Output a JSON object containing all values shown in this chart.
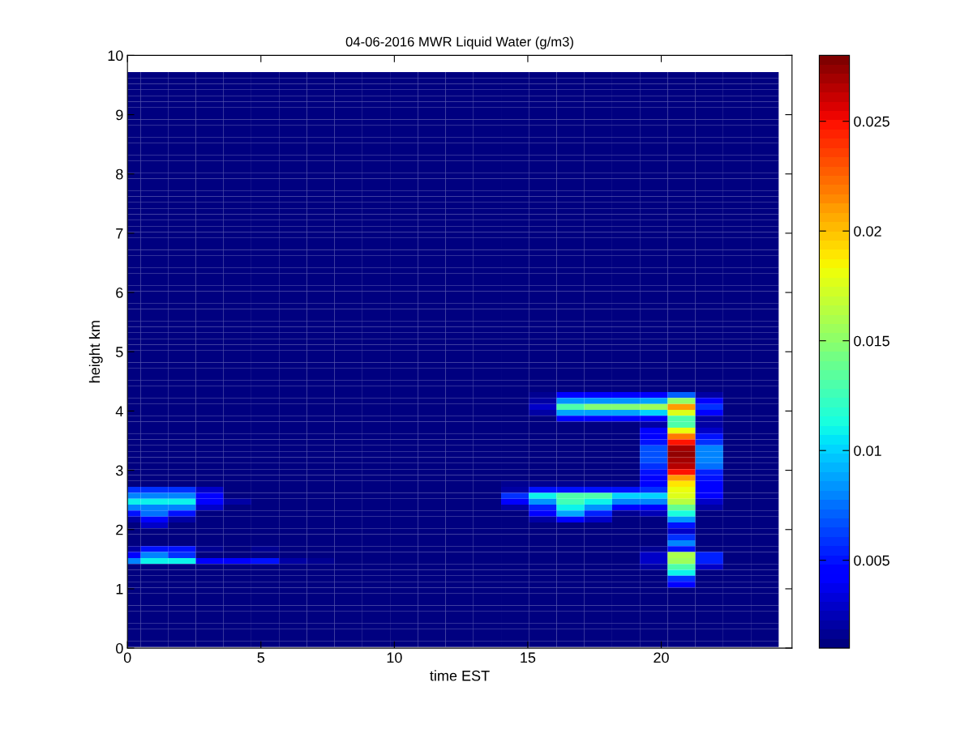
{
  "chart_data": {
    "type": "heatmap",
    "title": "04-06-2016 MWR Liquid Water (g/m3)",
    "xlabel": "time EST",
    "ylabel": "height km",
    "x": [
      0,
      1,
      2.04,
      3.08,
      4.12,
      5.16,
      6.2,
      7.24,
      8.28,
      9.32,
      10.36,
      11.4,
      12.44,
      13.48,
      14.52,
      15.56,
      16.6,
      17.64,
      18.68,
      19.72,
      20.76,
      21.8,
      22.84,
      23.88
    ],
    "y": [
      9.67,
      9.57,
      9.47,
      9.37,
      9.27,
      9.17,
      9.07,
      8.97,
      8.87,
      8.77,
      8.67,
      8.57,
      8.47,
      8.37,
      8.27,
      8.17,
      8.07,
      7.97,
      7.87,
      7.77,
      7.67,
      7.57,
      7.47,
      7.37,
      7.27,
      7.17,
      7.07,
      6.97,
      6.87,
      6.77,
      6.67,
      6.57,
      6.47,
      6.37,
      6.27,
      6.17,
      6.07,
      5.97,
      5.87,
      5.77,
      5.67,
      5.57,
      5.47,
      5.37,
      5.27,
      5.17,
      5.07,
      4.97,
      4.87,
      4.77,
      4.67,
      4.57,
      4.47,
      4.37,
      4.27,
      4.17,
      4.07,
      3.97,
      3.87,
      3.77,
      3.67,
      3.57,
      3.47,
      3.37,
      3.27,
      3.17,
      3.07,
      2.97,
      2.87,
      2.77,
      2.67,
      2.57,
      2.47,
      2.37,
      2.27,
      2.17,
      2.07,
      1.97,
      1.87,
      1.77,
      1.67,
      1.57,
      1.47,
      1.37,
      1.27,
      1.17,
      1.07,
      0.97,
      0.87,
      0.77,
      0.67,
      0.57,
      0.47,
      0.37,
      0.27,
      0.17,
      0.07
    ],
    "cells": [
      [
        0.001,
        0.001,
        0.001,
        0.001,
        0.001,
        0.001,
        0.001,
        0.001,
        0.001,
        0.001,
        0.001,
        0.001,
        0.001,
        0.001,
        0.001,
        0.001,
        0.001,
        0.001,
        0.001,
        0.001,
        0.001,
        0.001,
        0.001,
        0.001
      ],
      [
        0.001,
        0.001,
        0.001,
        0.001,
        0.001,
        0.001,
        0.001,
        0.001,
        0.001,
        0.001,
        0.001,
        0.001,
        0.001,
        0.001,
        0.001,
        0.001,
        0.001,
        0.001,
        0.001,
        0.001,
        0.001,
        0.001,
        0.001,
        0.001
      ],
      [
        0.001,
        0.001,
        0.001,
        0.001,
        0.001,
        0.001,
        0.001,
        0.001,
        0.001,
        0.001,
        0.001,
        0.001,
        0.001,
        0.001,
        0.001,
        0.001,
        0.001,
        0.001,
        0.001,
        0.001,
        0.001,
        0.001,
        0.001,
        0.001
      ],
      [
        0.001,
        0.001,
        0.001,
        0.001,
        0.001,
        0.001,
        0.001,
        0.001,
        0.001,
        0.001,
        0.001,
        0.001,
        0.001,
        0.001,
        0.001,
        0.001,
        0.001,
        0.001,
        0.001,
        0.001,
        0.001,
        0.001,
        0.001,
        0.001
      ],
      [
        0.001,
        0.001,
        0.001,
        0.001,
        0.001,
        0.001,
        0.001,
        0.001,
        0.001,
        0.001,
        0.001,
        0.001,
        0.001,
        0.001,
        0.001,
        0.001,
        0.001,
        0.001,
        0.001,
        0.001,
        0.001,
        0.001,
        0.001,
        0.001
      ],
      [
        0.001,
        0.001,
        0.001,
        0.001,
        0.001,
        0.001,
        0.001,
        0.001,
        0.001,
        0.001,
        0.001,
        0.001,
        0.001,
        0.001,
        0.001,
        0.001,
        0.001,
        0.001,
        0.001,
        0.001,
        0.001,
        0.001,
        0.001,
        0.001
      ],
      [
        0.001,
        0.001,
        0.001,
        0.001,
        0.001,
        0.001,
        0.001,
        0.001,
        0.001,
        0.001,
        0.001,
        0.001,
        0.001,
        0.001,
        0.001,
        0.001,
        0.001,
        0.001,
        0.001,
        0.001,
        0.001,
        0.001,
        0.001,
        0.001
      ],
      [
        0.001,
        0.001,
        0.001,
        0.001,
        0.001,
        0.001,
        0.001,
        0.001,
        0.001,
        0.001,
        0.001,
        0.001,
        0.001,
        0.001,
        0.001,
        0.001,
        0.001,
        0.001,
        0.001,
        0.001,
        0.001,
        0.001,
        0.001,
        0.001
      ],
      [
        0.001,
        0.001,
        0.001,
        0.001,
        0.001,
        0.001,
        0.001,
        0.001,
        0.001,
        0.001,
        0.001,
        0.001,
        0.001,
        0.001,
        0.001,
        0.001,
        0.001,
        0.001,
        0.001,
        0.001,
        0.001,
        0.001,
        0.001,
        0.001
      ],
      [
        0.001,
        0.001,
        0.001,
        0.001,
        0.001,
        0.001,
        0.001,
        0.001,
        0.001,
        0.001,
        0.001,
        0.001,
        0.001,
        0.001,
        0.001,
        0.001,
        0.001,
        0.001,
        0.001,
        0.001,
        0.001,
        0.001,
        0.001,
        0.001
      ],
      [
        0.001,
        0.001,
        0.001,
        0.001,
        0.001,
        0.001,
        0.001,
        0.001,
        0.001,
        0.001,
        0.001,
        0.001,
        0.001,
        0.001,
        0.001,
        0.001,
        0.001,
        0.001,
        0.001,
        0.001,
        0.001,
        0.001,
        0.001,
        0.001
      ],
      [
        0.001,
        0.001,
        0.001,
        0.001,
        0.001,
        0.001,
        0.001,
        0.001,
        0.001,
        0.001,
        0.001,
        0.001,
        0.001,
        0.001,
        0.001,
        0.001,
        0.001,
        0.001,
        0.001,
        0.001,
        0.001,
        0.001,
        0.001,
        0.001
      ],
      [
        0.001,
        0.001,
        0.001,
        0.001,
        0.001,
        0.001,
        0.001,
        0.001,
        0.001,
        0.001,
        0.001,
        0.001,
        0.001,
        0.001,
        0.001,
        0.001,
        0.001,
        0.001,
        0.001,
        0.001,
        0.001,
        0.001,
        0.001,
        0.001
      ],
      [
        0.001,
        0.001,
        0.001,
        0.001,
        0.001,
        0.001,
        0.001,
        0.001,
        0.001,
        0.001,
        0.001,
        0.001,
        0.001,
        0.001,
        0.001,
        0.001,
        0.001,
        0.001,
        0.001,
        0.001,
        0.001,
        0.001,
        0.001,
        0.001
      ],
      [
        0.001,
        0.001,
        0.001,
        0.001,
        0.001,
        0.001,
        0.001,
        0.001,
        0.001,
        0.001,
        0.001,
        0.001,
        0.001,
        0.001,
        0.001,
        0.001,
        0.001,
        0.001,
        0.001,
        0.001,
        0.001,
        0.001,
        0.001,
        0.001
      ],
      [
        0.001,
        0.001,
        0.001,
        0.001,
        0.001,
        0.001,
        0.001,
        0.001,
        0.001,
        0.001,
        0.001,
        0.001,
        0.001,
        0.001,
        0.001,
        0.001,
        0.001,
        0.001,
        0.001,
        0.001,
        0.001,
        0.001,
        0.001,
        0.001
      ],
      [
        0.001,
        0.001,
        0.001,
        0.001,
        0.001,
        0.001,
        0.001,
        0.001,
        0.001,
        0.001,
        0.001,
        0.001,
        0.001,
        0.001,
        0.001,
        0.001,
        0.001,
        0.001,
        0.001,
        0.001,
        0.001,
        0.001,
        0.001,
        0.001
      ],
      [
        0.001,
        0.001,
        0.001,
        0.001,
        0.001,
        0.001,
        0.001,
        0.001,
        0.001,
        0.001,
        0.001,
        0.001,
        0.001,
        0.001,
        0.001,
        0.001,
        0.001,
        0.001,
        0.001,
        0.001,
        0.001,
        0.001,
        0.001,
        0.001
      ],
      [
        0.001,
        0.001,
        0.001,
        0.001,
        0.001,
        0.001,
        0.001,
        0.001,
        0.001,
        0.001,
        0.001,
        0.001,
        0.001,
        0.001,
        0.001,
        0.001,
        0.001,
        0.001,
        0.001,
        0.001,
        0.001,
        0.001,
        0.001,
        0.001
      ],
      [
        0.001,
        0.001,
        0.001,
        0.001,
        0.001,
        0.001,
        0.001,
        0.001,
        0.001,
        0.001,
        0.001,
        0.001,
        0.001,
        0.001,
        0.001,
        0.001,
        0.001,
        0.001,
        0.001,
        0.001,
        0.001,
        0.001,
        0.001,
        0.001
      ],
      [
        0.001,
        0.001,
        0.001,
        0.001,
        0.001,
        0.001,
        0.001,
        0.001,
        0.001,
        0.001,
        0.001,
        0.001,
        0.001,
        0.001,
        0.001,
        0.001,
        0.001,
        0.001,
        0.001,
        0.001,
        0.001,
        0.001,
        0.001,
        0.001
      ],
      [
        0.001,
        0.001,
        0.001,
        0.001,
        0.001,
        0.001,
        0.001,
        0.001,
        0.001,
        0.001,
        0.001,
        0.001,
        0.001,
        0.001,
        0.001,
        0.001,
        0.001,
        0.001,
        0.001,
        0.001,
        0.001,
        0.001,
        0.001,
        0.001
      ],
      [
        0.001,
        0.001,
        0.001,
        0.001,
        0.001,
        0.001,
        0.001,
        0.001,
        0.001,
        0.001,
        0.001,
        0.001,
        0.001,
        0.001,
        0.001,
        0.001,
        0.001,
        0.001,
        0.001,
        0.001,
        0.001,
        0.001,
        0.001,
        0.001
      ],
      [
        0.001,
        0.001,
        0.001,
        0.001,
        0.001,
        0.001,
        0.001,
        0.001,
        0.001,
        0.001,
        0.001,
        0.001,
        0.001,
        0.001,
        0.001,
        0.001,
        0.001,
        0.001,
        0.001,
        0.001,
        0.001,
        0.001,
        0.001,
        0.001
      ],
      [
        0.001,
        0.001,
        0.001,
        0.001,
        0.001,
        0.001,
        0.001,
        0.001,
        0.001,
        0.001,
        0.001,
        0.001,
        0.001,
        0.001,
        0.001,
        0.001,
        0.001,
        0.001,
        0.001,
        0.001,
        0.001,
        0.001,
        0.001,
        0.001
      ],
      [
        0.001,
        0.001,
        0.001,
        0.001,
        0.001,
        0.001,
        0.001,
        0.001,
        0.001,
        0.001,
        0.001,
        0.001,
        0.001,
        0.001,
        0.001,
        0.001,
        0.001,
        0.001,
        0.001,
        0.001,
        0.001,
        0.001,
        0.001,
        0.001
      ],
      [
        0.001,
        0.001,
        0.001,
        0.001,
        0.001,
        0.001,
        0.001,
        0.001,
        0.001,
        0.001,
        0.001,
        0.001,
        0.001,
        0.001,
        0.001,
        0.001,
        0.001,
        0.001,
        0.001,
        0.001,
        0.001,
        0.001,
        0.001,
        0.001
      ],
      [
        0.001,
        0.001,
        0.001,
        0.001,
        0.001,
        0.001,
        0.001,
        0.001,
        0.001,
        0.001,
        0.001,
        0.001,
        0.001,
        0.001,
        0.001,
        0.001,
        0.001,
        0.001,
        0.001,
        0.001,
        0.001,
        0.001,
        0.001,
        0.001
      ],
      [
        0.001,
        0.001,
        0.001,
        0.001,
        0.001,
        0.001,
        0.001,
        0.001,
        0.001,
        0.001,
        0.001,
        0.001,
        0.001,
        0.001,
        0.001,
        0.001,
        0.001,
        0.001,
        0.001,
        0.001,
        0.001,
        0.001,
        0.001,
        0.001
      ],
      [
        0.001,
        0.001,
        0.001,
        0.001,
        0.001,
        0.001,
        0.001,
        0.001,
        0.001,
        0.001,
        0.001,
        0.001,
        0.001,
        0.001,
        0.001,
        0.001,
        0.001,
        0.001,
        0.001,
        0.001,
        0.001,
        0.001,
        0.001,
        0.001
      ],
      [
        0.001,
        0.001,
        0.001,
        0.001,
        0.001,
        0.001,
        0.001,
        0.001,
        0.001,
        0.001,
        0.001,
        0.001,
        0.001,
        0.001,
        0.001,
        0.001,
        0.001,
        0.001,
        0.001,
        0.001,
        0.001,
        0.001,
        0.001,
        0.001
      ],
      [
        0.001,
        0.001,
        0.001,
        0.001,
        0.001,
        0.001,
        0.001,
        0.001,
        0.001,
        0.001,
        0.001,
        0.001,
        0.001,
        0.001,
        0.001,
        0.001,
        0.001,
        0.001,
        0.001,
        0.001,
        0.001,
        0.001,
        0.001,
        0.001
      ],
      [
        0.001,
        0.001,
        0.001,
        0.001,
        0.001,
        0.001,
        0.001,
        0.001,
        0.001,
        0.001,
        0.001,
        0.001,
        0.001,
        0.001,
        0.001,
        0.001,
        0.001,
        0.001,
        0.001,
        0.001,
        0.001,
        0.001,
        0.001,
        0.001
      ],
      [
        0.001,
        0.001,
        0.001,
        0.001,
        0.001,
        0.001,
        0.001,
        0.001,
        0.001,
        0.001,
        0.001,
        0.001,
        0.001,
        0.001,
        0.001,
        0.001,
        0.001,
        0.001,
        0.001,
        0.001,
        0.001,
        0.001,
        0.001,
        0.001
      ],
      [
        0.001,
        0.001,
        0.001,
        0.001,
        0.001,
        0.001,
        0.001,
        0.001,
        0.001,
        0.001,
        0.001,
        0.001,
        0.001,
        0.001,
        0.001,
        0.001,
        0.001,
        0.001,
        0.001,
        0.001,
        0.001,
        0.001,
        0.001,
        0.001
      ],
      [
        0.001,
        0.001,
        0.001,
        0.001,
        0.001,
        0.001,
        0.001,
        0.001,
        0.001,
        0.001,
        0.001,
        0.001,
        0.001,
        0.001,
        0.001,
        0.001,
        0.001,
        0.001,
        0.001,
        0.001,
        0.001,
        0.001,
        0.001,
        0.001
      ],
      [
        0.001,
        0.001,
        0.001,
        0.001,
        0.001,
        0.001,
        0.001,
        0.001,
        0.001,
        0.001,
        0.001,
        0.001,
        0.001,
        0.001,
        0.001,
        0.001,
        0.001,
        0.001,
        0.001,
        0.001,
        0.001,
        0.001,
        0.001,
        0.001
      ],
      [
        0.001,
        0.001,
        0.001,
        0.001,
        0.001,
        0.001,
        0.001,
        0.001,
        0.001,
        0.001,
        0.001,
        0.001,
        0.001,
        0.001,
        0.001,
        0.001,
        0.001,
        0.001,
        0.001,
        0.001,
        0.001,
        0.001,
        0.001,
        0.001
      ],
      [
        0.001,
        0.001,
        0.001,
        0.001,
        0.001,
        0.001,
        0.001,
        0.001,
        0.001,
        0.001,
        0.001,
        0.001,
        0.001,
        0.001,
        0.001,
        0.001,
        0.001,
        0.001,
        0.001,
        0.001,
        0.001,
        0.001,
        0.001,
        0.001
      ],
      [
        0.001,
        0.001,
        0.001,
        0.001,
        0.001,
        0.001,
        0.001,
        0.001,
        0.001,
        0.001,
        0.001,
        0.001,
        0.001,
        0.001,
        0.001,
        0.001,
        0.001,
        0.001,
        0.001,
        0.001,
        0.001,
        0.001,
        0.001,
        0.001
      ],
      [
        0.001,
        0.001,
        0.001,
        0.001,
        0.001,
        0.001,
        0.001,
        0.001,
        0.001,
        0.001,
        0.001,
        0.001,
        0.001,
        0.001,
        0.001,
        0.001,
        0.001,
        0.001,
        0.001,
        0.001,
        0.001,
        0.001,
        0.001,
        0.001
      ],
      [
        0.001,
        0.001,
        0.001,
        0.001,
        0.001,
        0.001,
        0.001,
        0.001,
        0.001,
        0.001,
        0.001,
        0.001,
        0.001,
        0.001,
        0.001,
        0.001,
        0.001,
        0.001,
        0.001,
        0.001,
        0.001,
        0.001,
        0.001,
        0.001
      ],
      [
        0.001,
        0.001,
        0.001,
        0.001,
        0.001,
        0.001,
        0.001,
        0.001,
        0.001,
        0.001,
        0.001,
        0.001,
        0.001,
        0.001,
        0.001,
        0.001,
        0.001,
        0.001,
        0.001,
        0.001,
        0.001,
        0.001,
        0.001,
        0.001
      ],
      [
        0.001,
        0.001,
        0.001,
        0.001,
        0.001,
        0.001,
        0.001,
        0.001,
        0.001,
        0.001,
        0.001,
        0.001,
        0.001,
        0.001,
        0.001,
        0.001,
        0.001,
        0.001,
        0.001,
        0.001,
        0.001,
        0.001,
        0.001,
        0.001
      ],
      [
        0.001,
        0.001,
        0.001,
        0.001,
        0.001,
        0.001,
        0.001,
        0.001,
        0.001,
        0.001,
        0.001,
        0.001,
        0.001,
        0.001,
        0.001,
        0.001,
        0.001,
        0.001,
        0.001,
        0.001,
        0.001,
        0.001,
        0.001,
        0.001
      ],
      [
        0.001,
        0.001,
        0.001,
        0.001,
        0.001,
        0.001,
        0.001,
        0.001,
        0.001,
        0.001,
        0.001,
        0.001,
        0.001,
        0.001,
        0.001,
        0.001,
        0.001,
        0.001,
        0.001,
        0.001,
        0.001,
        0.001,
        0.001,
        0.001
      ],
      [
        0.001,
        0.001,
        0.001,
        0.001,
        0.001,
        0.001,
        0.001,
        0.001,
        0.001,
        0.001,
        0.001,
        0.001,
        0.001,
        0.001,
        0.001,
        0.001,
        0.001,
        0.001,
        0.001,
        0.001,
        0.001,
        0.001,
        0.001,
        0.001
      ],
      [
        0.001,
        0.001,
        0.001,
        0.001,
        0.001,
        0.001,
        0.001,
        0.001,
        0.001,
        0.001,
        0.001,
        0.001,
        0.001,
        0.001,
        0.001,
        0.001,
        0.001,
        0.001,
        0.001,
        0.001,
        0.001,
        0.001,
        0.001,
        0.001
      ],
      [
        0.001,
        0.001,
        0.001,
        0.001,
        0.001,
        0.001,
        0.001,
        0.001,
        0.001,
        0.001,
        0.001,
        0.001,
        0.001,
        0.001,
        0.001,
        0.001,
        0.001,
        0.001,
        0.001,
        0.001,
        0.001,
        0.001,
        0.001,
        0.001
      ],
      [
        0.001,
        0.001,
        0.001,
        0.001,
        0.001,
        0.001,
        0.001,
        0.001,
        0.001,
        0.001,
        0.001,
        0.001,
        0.001,
        0.001,
        0.001,
        0.001,
        0.001,
        0.001,
        0.001,
        0.001,
        0.001,
        0.001,
        0.001,
        0.001
      ],
      [
        0.001,
        0.001,
        0.001,
        0.001,
        0.001,
        0.001,
        0.001,
        0.001,
        0.001,
        0.001,
        0.001,
        0.001,
        0.001,
        0.001,
        0.001,
        0.001,
        0.001,
        0.001,
        0.001,
        0.001,
        0.001,
        0.001,
        0.001,
        0.001
      ],
      [
        0.001,
        0.001,
        0.001,
        0.001,
        0.001,
        0.001,
        0.001,
        0.001,
        0.001,
        0.001,
        0.001,
        0.001,
        0.001,
        0.001,
        0.001,
        0.001,
        0.001,
        0.001,
        0.001,
        0.001,
        0.001,
        0.001,
        0.001,
        0.001
      ],
      [
        0.001,
        0.001,
        0.001,
        0.001,
        0.001,
        0.001,
        0.001,
        0.001,
        0.001,
        0.001,
        0.001,
        0.001,
        0.001,
        0.001,
        0.001,
        0.001,
        0.001,
        0.001,
        0.001,
        0.001,
        0.001,
        0.001,
        0.001,
        0.001
      ],
      [
        0.001,
        0.001,
        0.001,
        0.001,
        0.001,
        0.001,
        0.001,
        0.001,
        0.001,
        0.001,
        0.001,
        0.001,
        0.001,
        0.001,
        0.001,
        0.001,
        0.001,
        0.001,
        0.001,
        0.001,
        0.001,
        0.001,
        0.001,
        0.001
      ],
      [
        0.001,
        0.001,
        0.001,
        0.001,
        0.001,
        0.001,
        0.001,
        0.001,
        0.001,
        0.001,
        0.001,
        0.001,
        0.001,
        0.001,
        0.001,
        0.0015,
        0.004,
        0.004,
        0.004,
        0.004,
        0.007,
        0.002,
        0.001,
        0.001
      ],
      [
        0.001,
        0.001,
        0.001,
        0.001,
        0.001,
        0.001,
        0.001,
        0.001,
        0.001,
        0.001,
        0.001,
        0.001,
        0.001,
        0.001,
        0.001,
        0.002,
        0.0085,
        0.0085,
        0.0085,
        0.009,
        0.015,
        0.004,
        0.001,
        0.001
      ],
      [
        0.001,
        0.001,
        0.001,
        0.001,
        0.001,
        0.001,
        0.001,
        0.001,
        0.001,
        0.001,
        0.001,
        0.001,
        0.001,
        0.001,
        0.001,
        0.003,
        0.013,
        0.0145,
        0.0145,
        0.0155,
        0.021,
        0.006,
        0.001,
        0.001
      ],
      [
        0.001,
        0.001,
        0.001,
        0.001,
        0.001,
        0.001,
        0.001,
        0.001,
        0.001,
        0.001,
        0.001,
        0.001,
        0.001,
        0.001,
        0.001,
        0.002,
        0.009,
        0.009,
        0.009,
        0.01,
        0.0175,
        0.0045,
        0.001,
        0.001
      ],
      [
        0.001,
        0.001,
        0.001,
        0.001,
        0.001,
        0.001,
        0.001,
        0.001,
        0.001,
        0.001,
        0.001,
        0.001,
        0.001,
        0.001,
        0.001,
        0.001,
        0.004,
        0.004,
        0.004,
        0.004,
        0.013,
        0.002,
        0.001,
        0.001
      ],
      [
        0.001,
        0.001,
        0.001,
        0.001,
        0.001,
        0.001,
        0.001,
        0.001,
        0.001,
        0.001,
        0.001,
        0.001,
        0.001,
        0.001,
        0.001,
        0.001,
        0.001,
        0.001,
        0.001,
        0.002,
        0.013,
        0.002,
        0.001,
        0.001
      ],
      [
        0.001,
        0.001,
        0.001,
        0.001,
        0.001,
        0.001,
        0.001,
        0.001,
        0.001,
        0.001,
        0.001,
        0.001,
        0.001,
        0.001,
        0.001,
        0.001,
        0.001,
        0.001,
        0.001,
        0.004,
        0.018,
        0.003,
        0.001,
        0.001
      ],
      [
        0.001,
        0.001,
        0.001,
        0.001,
        0.001,
        0.001,
        0.001,
        0.001,
        0.001,
        0.001,
        0.001,
        0.001,
        0.001,
        0.001,
        0.001,
        0.001,
        0.001,
        0.001,
        0.001,
        0.0045,
        0.022,
        0.005,
        0.001,
        0.001
      ],
      [
        0.001,
        0.001,
        0.001,
        0.001,
        0.001,
        0.001,
        0.001,
        0.001,
        0.001,
        0.001,
        0.001,
        0.001,
        0.001,
        0.001,
        0.001,
        0.001,
        0.001,
        0.001,
        0.001,
        0.005,
        0.025,
        0.006,
        0.001,
        0.001
      ],
      [
        0.001,
        0.001,
        0.001,
        0.001,
        0.001,
        0.001,
        0.001,
        0.001,
        0.001,
        0.001,
        0.001,
        0.001,
        0.001,
        0.001,
        0.001,
        0.001,
        0.001,
        0.001,
        0.001,
        0.0065,
        0.027,
        0.008,
        0.001,
        0.001
      ],
      [
        0.001,
        0.001,
        0.001,
        0.001,
        0.001,
        0.001,
        0.001,
        0.001,
        0.001,
        0.001,
        0.001,
        0.001,
        0.001,
        0.001,
        0.001,
        0.001,
        0.001,
        0.001,
        0.001,
        0.0065,
        0.0275,
        0.008,
        0.001,
        0.001
      ],
      [
        0.001,
        0.001,
        0.001,
        0.001,
        0.001,
        0.001,
        0.001,
        0.001,
        0.001,
        0.001,
        0.001,
        0.001,
        0.001,
        0.001,
        0.001,
        0.001,
        0.001,
        0.001,
        0.001,
        0.0065,
        0.027,
        0.008,
        0.001,
        0.001
      ],
      [
        0.001,
        0.001,
        0.001,
        0.001,
        0.001,
        0.001,
        0.001,
        0.001,
        0.001,
        0.001,
        0.001,
        0.001,
        0.001,
        0.001,
        0.001,
        0.001,
        0.001,
        0.001,
        0.001,
        0.006,
        0.0265,
        0.0075,
        0.001,
        0.001
      ],
      [
        0.001,
        0.001,
        0.001,
        0.001,
        0.001,
        0.001,
        0.001,
        0.001,
        0.001,
        0.001,
        0.001,
        0.001,
        0.001,
        0.001,
        0.001,
        0.001,
        0.001,
        0.001,
        0.001,
        0.005,
        0.025,
        0.0055,
        0.001,
        0.001
      ],
      [
        0.001,
        0.001,
        0.001,
        0.001,
        0.001,
        0.001,
        0.001,
        0.001,
        0.001,
        0.001,
        0.001,
        0.001,
        0.001,
        0.001,
        0.001,
        0.001,
        0.001,
        0.001,
        0.001,
        0.004,
        0.021,
        0.005,
        0.001,
        0.001
      ],
      [
        0.001,
        0.001,
        0.001,
        0.001,
        0.001,
        0.001,
        0.001,
        0.001,
        0.001,
        0.001,
        0.001,
        0.001,
        0.001,
        0.001,
        0.0015,
        0.0015,
        0.0015,
        0.0015,
        0.0015,
        0.004,
        0.019,
        0.0045,
        0.001,
        0.001
      ],
      [
        0.006,
        0.006,
        0.006,
        0.003,
        0.001,
        0.001,
        0.001,
        0.001,
        0.001,
        0.001,
        0.001,
        0.001,
        0.001,
        0.001,
        0.002,
        0.005,
        0.005,
        0.005,
        0.005,
        0.006,
        0.018,
        0.0045,
        0.001,
        0.001
      ],
      [
        0.008,
        0.008,
        0.008,
        0.004,
        0.001,
        0.001,
        0.001,
        0.001,
        0.001,
        0.001,
        0.001,
        0.001,
        0.001,
        0.001,
        0.006,
        0.011,
        0.013,
        0.013,
        0.01,
        0.01,
        0.0178,
        0.0045,
        0.001,
        0.001
      ],
      [
        0.011,
        0.011,
        0.011,
        0.0045,
        0.002,
        0.001,
        0.001,
        0.001,
        0.001,
        0.001,
        0.001,
        0.001,
        0.001,
        0.001,
        0.0045,
        0.0085,
        0.0125,
        0.011,
        0.008,
        0.008,
        0.0165,
        0.003,
        0.001,
        0.001
      ],
      [
        0.008,
        0.008,
        0.008,
        0.003,
        0.001,
        0.001,
        0.001,
        0.001,
        0.001,
        0.001,
        0.001,
        0.001,
        0.001,
        0.001,
        0.002,
        0.0055,
        0.011,
        0.0085,
        0.004,
        0.004,
        0.014,
        0.002,
        0.001,
        0.001
      ],
      [
        0.005,
        0.0075,
        0.005,
        0.001,
        0.001,
        0.001,
        0.001,
        0.001,
        0.001,
        0.001,
        0.001,
        0.001,
        0.001,
        0.001,
        0.001,
        0.004,
        0.009,
        0.0055,
        0.0015,
        0.0025,
        0.0115,
        0.001,
        0.001,
        0.001
      ],
      [
        0.002,
        0.0045,
        0.002,
        0.001,
        0.001,
        0.001,
        0.001,
        0.001,
        0.001,
        0.001,
        0.001,
        0.001,
        0.001,
        0.001,
        0.001,
        0.002,
        0.0045,
        0.003,
        0.001,
        0.001,
        0.0085,
        0.001,
        0.001,
        0.001
      ],
      [
        0.001,
        0.003,
        0.001,
        0.001,
        0.001,
        0.001,
        0.001,
        0.001,
        0.001,
        0.001,
        0.001,
        0.001,
        0.001,
        0.001,
        0.001,
        0.001,
        0.001,
        0.001,
        0.001,
        0.001,
        0.005,
        0.001,
        0.001,
        0.001
      ],
      [
        0.001,
        0.001,
        0.001,
        0.001,
        0.001,
        0.001,
        0.001,
        0.001,
        0.001,
        0.001,
        0.001,
        0.001,
        0.001,
        0.001,
        0.001,
        0.001,
        0.001,
        0.001,
        0.001,
        0.001,
        0.003,
        0.001,
        0.001,
        0.001
      ],
      [
        0.001,
        0.001,
        0.001,
        0.001,
        0.001,
        0.001,
        0.001,
        0.001,
        0.001,
        0.001,
        0.001,
        0.001,
        0.001,
        0.001,
        0.001,
        0.001,
        0.001,
        0.001,
        0.001,
        0.001,
        0.006,
        0.001,
        0.001,
        0.001
      ],
      [
        0.001,
        0.001,
        0.001,
        0.001,
        0.001,
        0.001,
        0.001,
        0.001,
        0.001,
        0.001,
        0.001,
        0.001,
        0.001,
        0.001,
        0.001,
        0.001,
        0.001,
        0.001,
        0.001,
        0.001,
        0.008,
        0.001,
        0.001,
        0.001
      ],
      [
        0.002,
        0.005,
        0.005,
        0.0015,
        0.001,
        0.0015,
        0.001,
        0.001,
        0.001,
        0.001,
        0.001,
        0.001,
        0.001,
        0.001,
        0.001,
        0.001,
        0.001,
        0.001,
        0.001,
        0.0015,
        0.005,
        0.001,
        0.001,
        0.001
      ],
      [
        0.004,
        0.008,
        0.006,
        0.001,
        0.001,
        0.001,
        0.001,
        0.001,
        0.001,
        0.001,
        0.001,
        0.001,
        0.001,
        0.001,
        0.001,
        0.001,
        0.001,
        0.001,
        0.001,
        0.003,
        0.016,
        0.0055,
        0.001,
        0.001
      ],
      [
        0.008,
        0.011,
        0.011,
        0.0045,
        0.0045,
        0.005,
        0.002,
        0.0018,
        0.001,
        0.001,
        0.001,
        0.001,
        0.001,
        0.001,
        0.001,
        0.001,
        0.001,
        0.001,
        0.001,
        0.003,
        0.0155,
        0.0055,
        0.001,
        0.001
      ],
      [
        0.001,
        0.001,
        0.001,
        0.001,
        0.001,
        0.001,
        0.001,
        0.001,
        0.001,
        0.001,
        0.001,
        0.001,
        0.001,
        0.001,
        0.001,
        0.001,
        0.001,
        0.001,
        0.001,
        0.002,
        0.013,
        0.003,
        0.001,
        0.001
      ],
      [
        0.001,
        0.001,
        0.001,
        0.001,
        0.001,
        0.001,
        0.001,
        0.001,
        0.001,
        0.001,
        0.001,
        0.001,
        0.001,
        0.001,
        0.001,
        0.001,
        0.001,
        0.001,
        0.001,
        0.001,
        0.011,
        0.001,
        0.001,
        0.001
      ],
      [
        0.001,
        0.001,
        0.001,
        0.001,
        0.001,
        0.001,
        0.001,
        0.001,
        0.001,
        0.001,
        0.001,
        0.001,
        0.001,
        0.001,
        0.001,
        0.001,
        0.001,
        0.001,
        0.001,
        0.001,
        0.006,
        0.001,
        0.001,
        0.001
      ],
      [
        0.001,
        0.001,
        0.001,
        0.001,
        0.001,
        0.001,
        0.001,
        0.001,
        0.001,
        0.001,
        0.001,
        0.001,
        0.001,
        0.001,
        0.001,
        0.001,
        0.001,
        0.001,
        0.001,
        0.001,
        0.004,
        0.001,
        0.001,
        0.001
      ],
      [
        0.001,
        0.001,
        0.001,
        0.001,
        0.001,
        0.001,
        0.001,
        0.001,
        0.001,
        0.001,
        0.001,
        0.001,
        0.001,
        0.001,
        0.001,
        0.001,
        0.001,
        0.001,
        0.001,
        0.001,
        0.001,
        0.001,
        0.001,
        0.001
      ],
      [
        0.001,
        0.001,
        0.001,
        0.001,
        0.001,
        0.001,
        0.001,
        0.001,
        0.001,
        0.001,
        0.001,
        0.001,
        0.001,
        0.001,
        0.001,
        0.001,
        0.001,
        0.001,
        0.001,
        0.001,
        0.001,
        0.001,
        0.001,
        0.001
      ],
      [
        0.001,
        0.001,
        0.001,
        0.001,
        0.001,
        0.001,
        0.001,
        0.001,
        0.001,
        0.001,
        0.001,
        0.001,
        0.001,
        0.001,
        0.001,
        0.001,
        0.001,
        0.001,
        0.001,
        0.001,
        0.001,
        0.001,
        0.001,
        0.001
      ],
      [
        0.001,
        0.001,
        0.001,
        0.001,
        0.001,
        0.001,
        0.001,
        0.001,
        0.001,
        0.001,
        0.001,
        0.001,
        0.001,
        0.001,
        0.001,
        0.001,
        0.001,
        0.001,
        0.001,
        0.001,
        0.001,
        0.001,
        0.001,
        0.001
      ],
      [
        0.001,
        0.001,
        0.001,
        0.001,
        0.001,
        0.001,
        0.001,
        0.001,
        0.001,
        0.001,
        0.001,
        0.001,
        0.001,
        0.001,
        0.001,
        0.001,
        0.001,
        0.001,
        0.001,
        0.001,
        0.001,
        0.001,
        0.001,
        0.001
      ],
      [
        0.001,
        0.001,
        0.001,
        0.001,
        0.001,
        0.001,
        0.001,
        0.001,
        0.001,
        0.001,
        0.001,
        0.001,
        0.001,
        0.001,
        0.001,
        0.001,
        0.001,
        0.001,
        0.001,
        0.001,
        0.001,
        0.001,
        0.001,
        0.001
      ],
      [
        0.001,
        0.001,
        0.001,
        0.001,
        0.001,
        0.001,
        0.001,
        0.001,
        0.001,
        0.001,
        0.001,
        0.001,
        0.001,
        0.001,
        0.001,
        0.001,
        0.001,
        0.001,
        0.001,
        0.001,
        0.001,
        0.001,
        0.001,
        0.001
      ],
      [
        0.001,
        0.001,
        0.001,
        0.001,
        0.001,
        0.001,
        0.001,
        0.001,
        0.001,
        0.001,
        0.001,
        0.001,
        0.001,
        0.001,
        0.001,
        0.001,
        0.001,
        0.001,
        0.001,
        0.001,
        0.001,
        0.001,
        0.001,
        0.001
      ],
      [
        0.001,
        0.001,
        0.001,
        0.001,
        0.001,
        0.001,
        0.001,
        0.001,
        0.001,
        0.001,
        0.001,
        0.001,
        0.001,
        0.001,
        0.001,
        0.001,
        0.001,
        0.001,
        0.001,
        0.001,
        0.001,
        0.001,
        0.001,
        0.001
      ],
      [
        0.001,
        0.001,
        0.001,
        0.001,
        0.001,
        0.001,
        0.001,
        0.001,
        0.001,
        0.001,
        0.001,
        0.001,
        0.001,
        0.001,
        0.001,
        0.001,
        0.001,
        0.001,
        0.001,
        0.001,
        0.001,
        0.001,
        0.001,
        0.001
      ]
    ],
    "xlim": [
      0,
      24.9
    ],
    "ylim": [
      0,
      10
    ],
    "xticks": [
      0,
      5,
      10,
      15,
      20
    ],
    "yticks": [
      0,
      1,
      2,
      3,
      4,
      5,
      6,
      7,
      8,
      9,
      10
    ],
    "clim": [
      0.001,
      0.028
    ],
    "cticks": [
      0.005,
      0.01,
      0.015,
      0.02,
      0.025
    ]
  }
}
